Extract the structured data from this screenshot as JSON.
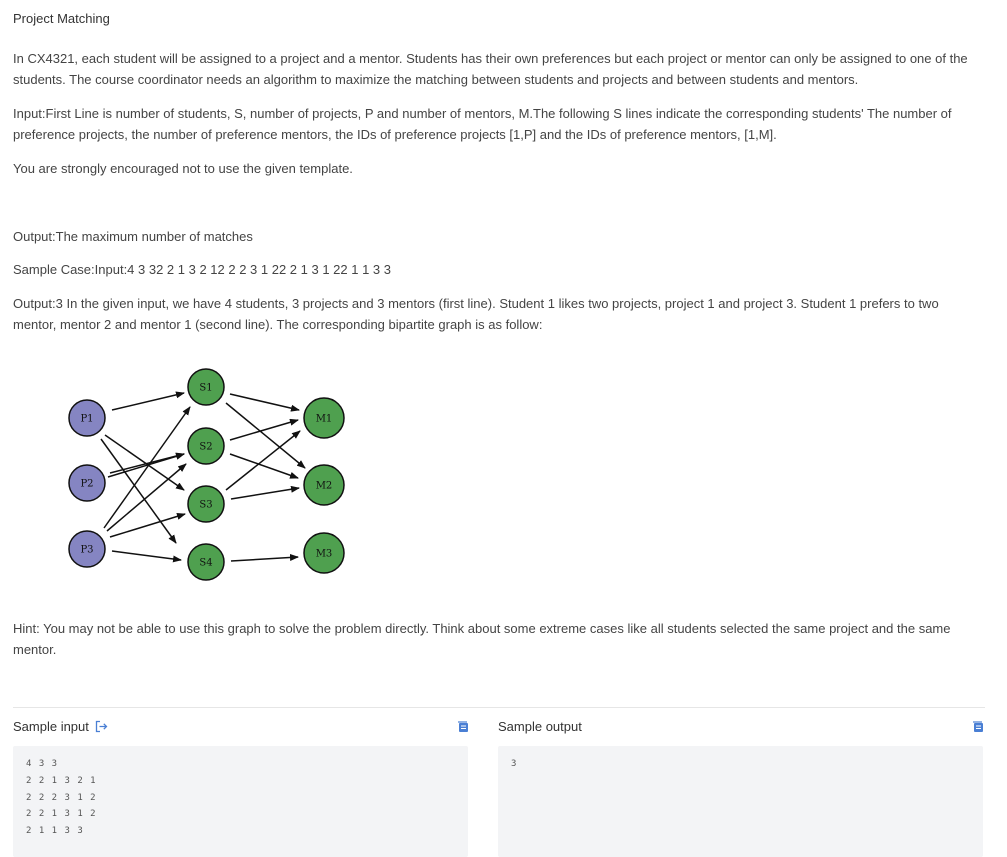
{
  "problem": {
    "title": "Project Matching",
    "description": "In CX4321, each student will be assigned to a project and a mentor. Students has their own preferences but each project or mentor can only be assigned to one of the students. The course coordinator needs an algorithm to maximize the matching between students and projects and between students and mentors.",
    "input_desc": "Input:First Line is number of students, S, number of projects, P and number of mentors, M.The following S lines indicate the corresponding students' The number of preference projects, the number of preference mentors, the IDs of preference projects [1,P] and the IDs of preference mentors, [1,M].",
    "encouragement": "You are strongly encouraged not to use the given template.",
    "output_desc": "Output:The maximum number of matches",
    "sample_case": "Sample Case:Input:4 3 32 2 1 3 2 12 2 2 3 1 22 2 1 3 1 22 1 1 3 3",
    "sample_output_desc": "Output:3 In the given input, we have 4 students, 3 projects and 3 mentors (first line). Student 1 likes two projects, project 1 and project 3. Student 1 prefers to two mentor, mentor 2 and mentor 1 (second line). The corresponding bipartite graph is as follow:",
    "hint": "Hint: You may not be able to use this graph to solve the problem directly. Think about some extreme cases like all students selected the same project and the same mentor."
  },
  "graph": {
    "projects": [
      "P1",
      "P2",
      "P3"
    ],
    "students": [
      "S1",
      "S2",
      "S3",
      "S4"
    ],
    "mentors": [
      "M1",
      "M2",
      "M3"
    ],
    "colors": {
      "project": "#8585c2",
      "student_mentor": "#4fa04f"
    }
  },
  "samples": {
    "input_label": "Sample input",
    "output_label": "Sample output",
    "input_text": "4 3 3\n2 2 1 3 2 1\n2 2 2 3 1 2\n2 2 1 3 1 2\n2 1 1 3 3",
    "output_text": "3"
  },
  "icons": {
    "open": "external-open-icon",
    "copy": "copy-icon"
  }
}
